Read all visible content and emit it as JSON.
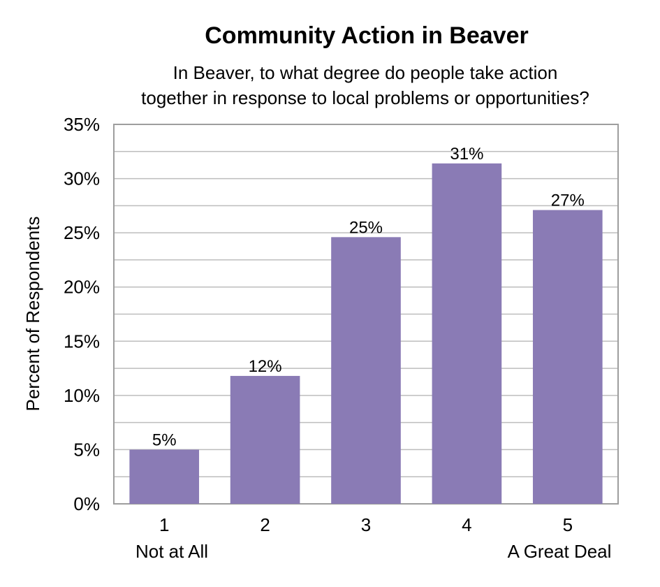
{
  "chart_data": {
    "type": "bar",
    "title": "Community Action in Beaver",
    "subtitle_lines": [
      "In Beaver, to what degree do people take action",
      "together in response to local problems or opportunities?"
    ],
    "xlabel": "",
    "ylabel": "Percent of Respondents",
    "categories": [
      "1",
      "2",
      "3",
      "4",
      "5"
    ],
    "category_sublabels": [
      "Not at All",
      "",
      "",
      "",
      "A Great Deal"
    ],
    "values": [
      5,
      11.8,
      24.6,
      31.4,
      27.1
    ],
    "data_labels": [
      "5%",
      "12%",
      "25%",
      "31%",
      "27%"
    ],
    "ylim": [
      0,
      35
    ],
    "ytick_values": [
      0,
      5,
      10,
      15,
      20,
      25,
      30,
      35
    ],
    "yticks": [
      "0%",
      "5%",
      "10%",
      "15%",
      "20%",
      "25%",
      "30%",
      "35%"
    ],
    "grid": true,
    "bar_color": "#8a7bb5",
    "grid_color": "#bdbdbd"
  }
}
